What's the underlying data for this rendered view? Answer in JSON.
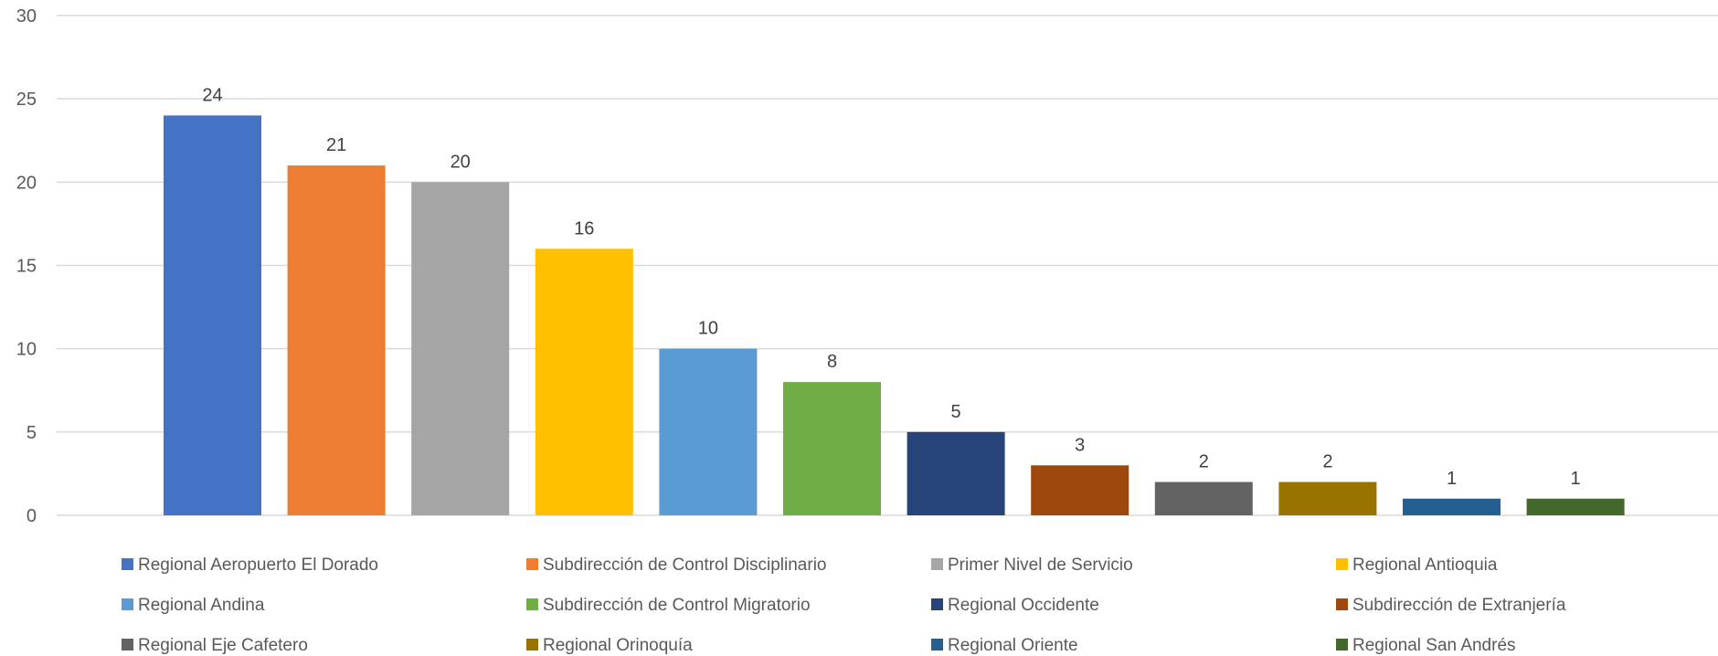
{
  "chart_data": {
    "type": "bar",
    "title": "",
    "xlabel": "",
    "ylabel": "",
    "ylim": [
      0,
      30
    ],
    "yticks": [
      0,
      5,
      10,
      15,
      20,
      25,
      30
    ],
    "grid": true,
    "legend_position": "bottom",
    "data_labels": true,
    "categories": [
      "Regional Aeropuerto El Dorado",
      "Subdirección de Control Disciplinario",
      "Primer Nivel de Servicio",
      "Regional Antioquia",
      "Regional Andina",
      "Subdirección de Control Migratorio",
      "Regional Occidente",
      "Subdirección de Extranjería",
      "Regional Eje Cafetero",
      "Regional Orinoquía",
      "Regional Oriente",
      "Regional San Andrés"
    ],
    "values": [
      24,
      21,
      20,
      16,
      10,
      8,
      5,
      3,
      2,
      2,
      1,
      1
    ],
    "colors": [
      "#4472C4",
      "#ED7D31",
      "#A5A5A5",
      "#FFC000",
      "#5B9BD5",
      "#70AD47",
      "#264478",
      "#9E480E",
      "#636363",
      "#997300",
      "#255E91",
      "#43682B"
    ]
  }
}
